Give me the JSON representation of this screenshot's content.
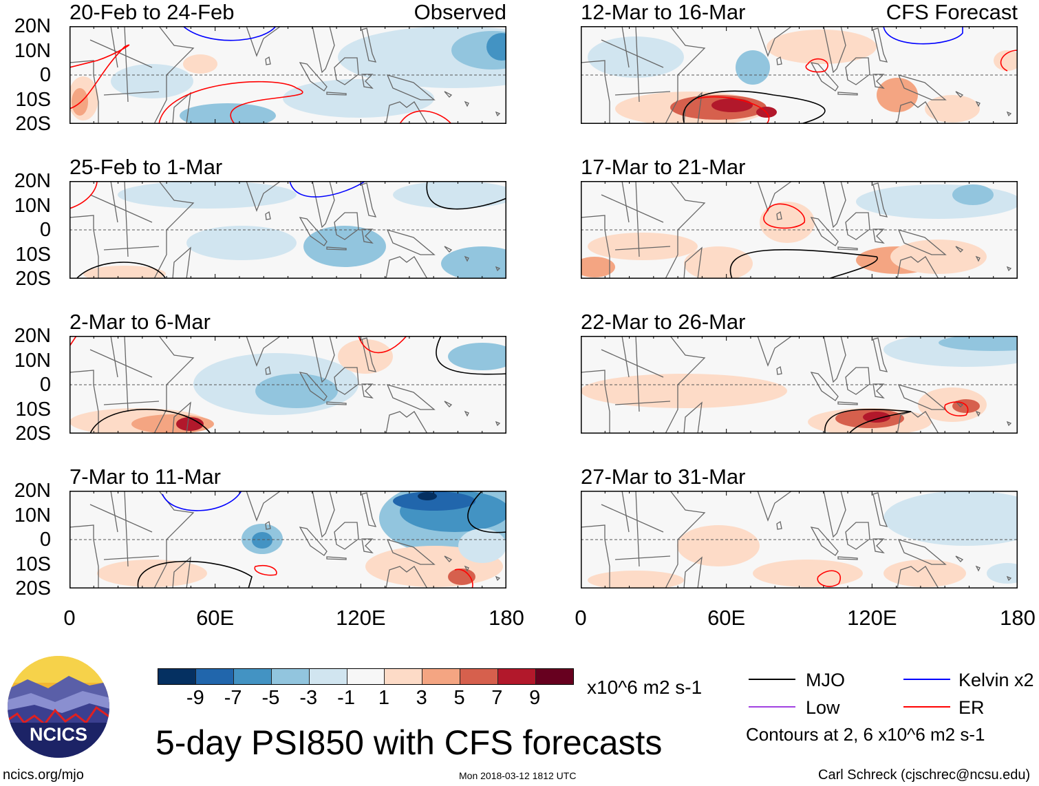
{
  "panels": [
    {
      "title": "20-Feb to 24-Feb",
      "tag": "Observed"
    },
    {
      "title": "12-Mar to 16-Mar",
      "tag": "CFS Forecast"
    },
    {
      "title": "25-Feb to 1-Mar",
      "tag": ""
    },
    {
      "title": "17-Mar to 21-Mar",
      "tag": ""
    },
    {
      "title": "2-Mar to 6-Mar",
      "tag": ""
    },
    {
      "title": "22-Mar to 26-Mar",
      "tag": ""
    },
    {
      "title": "7-Mar to 11-Mar",
      "tag": ""
    },
    {
      "title": "27-Mar to 31-Mar",
      "tag": ""
    }
  ],
  "lat_labels": [
    "20N",
    "10N",
    "0",
    "10S",
    "20S"
  ],
  "lon_labels": [
    "0",
    "60E",
    "120E",
    "180"
  ],
  "colorbar": {
    "colors": [
      "#053061",
      "#2166ac",
      "#4393c3",
      "#92c5de",
      "#d1e5f0",
      "#f7f7f7",
      "#fddbc7",
      "#f4a582",
      "#d6604d",
      "#b2182b",
      "#67001f"
    ],
    "labels": [
      "-9",
      "-7",
      "-5",
      "-3",
      "-1",
      "1",
      "3",
      "5",
      "7",
      "9"
    ],
    "units": "x10^6 m2 s-1"
  },
  "title": "5-day PSI850 with CFS forecasts",
  "legend": {
    "items": [
      {
        "label": "MJO",
        "color": "#000000"
      },
      {
        "label": "Kelvin x2",
        "color": "#0000ff"
      },
      {
        "label": "Low",
        "color": "#a040e0"
      },
      {
        "label": "ER",
        "color": "#ff0000"
      }
    ],
    "note": "Contours at 2, 6 x10^6 m2 s-1"
  },
  "logo": {
    "text": "NCICS"
  },
  "footer": {
    "url": "ncics.org/mjo",
    "timestamp": "Mon 2018-03-12 1812 UTC",
    "credit": "Carl Schreck (cjschrec@ncsu.edu)"
  }
}
